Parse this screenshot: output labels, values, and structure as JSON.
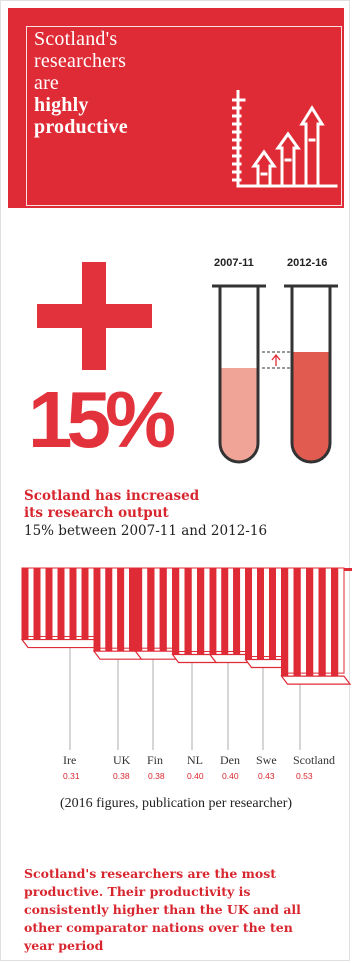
{
  "header": {
    "line1": "Scotland's",
    "line2": "researchers",
    "line3": "are",
    "line4": "highly",
    "line5": "productive"
  },
  "growth": {
    "percent": "15%",
    "period_before": "2007-11",
    "period_after": "2012-16",
    "summary_line1": "Scotland has increased",
    "summary_line2": "its research output",
    "summary_line3": "15% between 2007-11 and 2012-16"
  },
  "chart_data": {
    "type": "bar",
    "categories": [
      "Ire",
      "UK",
      "Fin",
      "NL",
      "Den",
      "Swe",
      "Scotland"
    ],
    "values": [
      0.31,
      0.38,
      0.38,
      0.4,
      0.4,
      0.43,
      0.53
    ],
    "value_labels": [
      "0.31",
      "0.38",
      "0.38",
      "0.40",
      "0.40",
      "0.43",
      "0.53"
    ],
    "note": "(2016 figures, publication per researcher)"
  },
  "conclusion": {
    "line1": "Scotland's researchers are the most",
    "line2": "productive. Their productivity is",
    "line3": "consistently higher than the UK and all",
    "line4": "other comparator nations over the ten",
    "line5": "year period"
  },
  "colors": {
    "brand_red": "#df2b36",
    "tube_fill_before": "#f0a497",
    "tube_fill_after": "#e25b50"
  }
}
